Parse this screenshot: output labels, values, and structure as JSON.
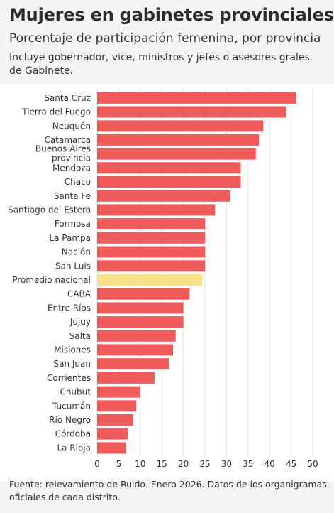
{
  "header": {
    "title": "Mujeres en gabinetes provinciales",
    "subtitle": "Porcentaje de participación femenina, por provincia",
    "note": "Incluye gobernador, vice, ministros y jefes o asesores grales. de Gabinete."
  },
  "footer": {
    "source": "Fuente: relevamiento de Ruido. Enero 2026. Datos de los organigramas oficiales de cada distrito."
  },
  "colors": {
    "bar": "#ef5b5b",
    "highlight": "#f7e08a",
    "grid": "#e3e3e3",
    "axis": "#333333"
  },
  "chart_data": {
    "type": "bar",
    "orientation": "horizontal",
    "xlim": [
      0,
      50
    ],
    "xticks": [
      0,
      5,
      10,
      15,
      20,
      25,
      30,
      35,
      40,
      45,
      50
    ],
    "grid": true,
    "highlight_category": "Promedio nacional",
    "categories": [
      "Santa Cruz",
      "Tierra del Fuego",
      "Neuquén",
      "Catamarca",
      "Buenos Aires provincia",
      "Mendoza",
      "Chaco",
      "Santa Fe",
      "Santiago del Estero",
      "Formosa",
      "La Pampa",
      "Nación",
      "San Luis",
      "Promedio nacional",
      "CABA",
      "Entre Ríos",
      "Jujuy",
      "Salta",
      "Misiones",
      "San Juan",
      "Corrientes",
      "Chubut",
      "Tucumán",
      "Río Negro",
      "Córdoba",
      "La Rioja"
    ],
    "label_lines": [
      [
        "Santa Cruz"
      ],
      [
        "Tierra del Fuego"
      ],
      [
        "Neuquén"
      ],
      [
        "Catamarca"
      ],
      [
        "Buenos Aires",
        "provincia"
      ],
      [
        "Mendoza"
      ],
      [
        "Chaco"
      ],
      [
        "Santa Fe"
      ],
      [
        "Santiago del Estero"
      ],
      [
        "Formosa"
      ],
      [
        "La Pampa"
      ],
      [
        "Nación"
      ],
      [
        "San Luis"
      ],
      [
        "Promedio nacional"
      ],
      [
        "CABA"
      ],
      [
        "Entre Ríos"
      ],
      [
        "Jujuy"
      ],
      [
        "Salta"
      ],
      [
        "Misiones"
      ],
      [
        "San Juan"
      ],
      [
        "Corrientes"
      ],
      [
        "Chubut"
      ],
      [
        "Tucumán"
      ],
      [
        "Río Negro"
      ],
      [
        "Córdoba"
      ],
      [
        "La Rioja"
      ]
    ],
    "values": [
      46.2,
      43.8,
      38.5,
      37.5,
      36.8,
      33.3,
      33.3,
      30.8,
      27.3,
      25.0,
      25.0,
      25.0,
      25.0,
      24.4,
      21.4,
      20.0,
      20.0,
      18.2,
      17.6,
      16.7,
      13.3,
      10.0,
      9.1,
      8.3,
      7.1,
      6.7
    ]
  }
}
